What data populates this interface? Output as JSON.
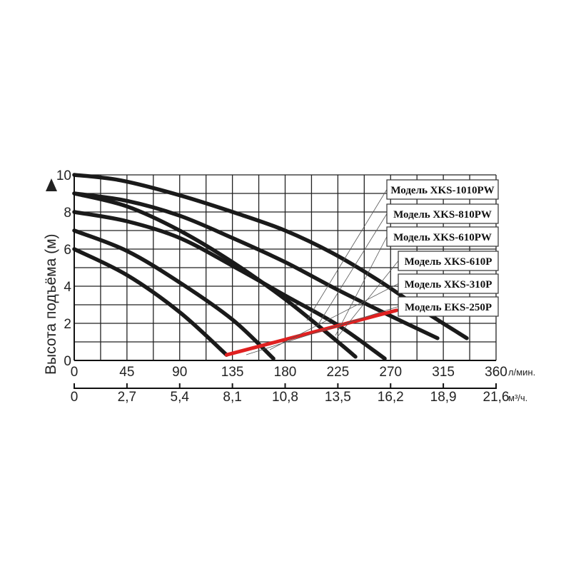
{
  "chart_data": {
    "type": "line",
    "ylabel": "Высота подъёма (м)",
    "ylim": [
      0,
      10
    ],
    "yticks": [
      "0",
      "2",
      "4",
      "6",
      "8",
      "10"
    ],
    "x_primary": {
      "unit": "л/мин.",
      "range": [
        0,
        360
      ],
      "ticks": [
        "0",
        "45",
        "90",
        "135",
        "180",
        "225",
        "270",
        "315",
        "360"
      ]
    },
    "x_secondary": {
      "unit": "м³/ч.",
      "ticks": [
        "0",
        "2,7",
        "5,4",
        "8,1",
        "10,8",
        "13,5",
        "16,2",
        "18,9",
        "21,6"
      ]
    },
    "grid": true,
    "series": [
      {
        "name": "Модель XKS-1010PW",
        "x": [
          0,
          40,
          90,
          140,
          180,
          220,
          260,
          300,
          335
        ],
        "y": [
          10,
          9.7,
          8.9,
          7.9,
          7.0,
          5.8,
          4.3,
          2.6,
          1.2
        ]
      },
      {
        "name": "Модель XKS-810PW",
        "x": [
          0,
          45,
          90,
          135,
          180,
          225,
          270,
          310
        ],
        "y": [
          9.0,
          8.6,
          7.8,
          6.6,
          5.3,
          3.8,
          2.4,
          1.2
        ]
      },
      {
        "name": "Модель XKS-610PW",
        "x": [
          0,
          45,
          90,
          135,
          180,
          225,
          265
        ],
        "y": [
          8.0,
          7.5,
          6.6,
          5.1,
          3.5,
          1.9,
          0.1
        ]
      },
      {
        "name": "Модель XKS-610P",
        "x": [
          0,
          45,
          90,
          135,
          180,
          225,
          240
        ],
        "y": [
          9.0,
          8.3,
          7.0,
          5.3,
          3.3,
          1.0,
          0.2
        ]
      },
      {
        "name": "Модель XKS-310P",
        "x": [
          0,
          45,
          90,
          135,
          170
        ],
        "y": [
          7.0,
          5.9,
          4.2,
          2.2,
          0.1
        ]
      },
      {
        "name": "Модель EKS-250P",
        "x": [
          0,
          45,
          90,
          130
        ],
        "y": [
          6.0,
          4.6,
          2.6,
          0.3
        ]
      }
    ],
    "operating_line": {
      "x": [
        130,
        275
      ],
      "y": [
        0.3,
        2.7
      ],
      "color": "#e02020"
    },
    "legend_position": "right",
    "colors": {
      "curve": "#1a1a1a",
      "grid": "#222222",
      "leader": "#555555"
    }
  }
}
